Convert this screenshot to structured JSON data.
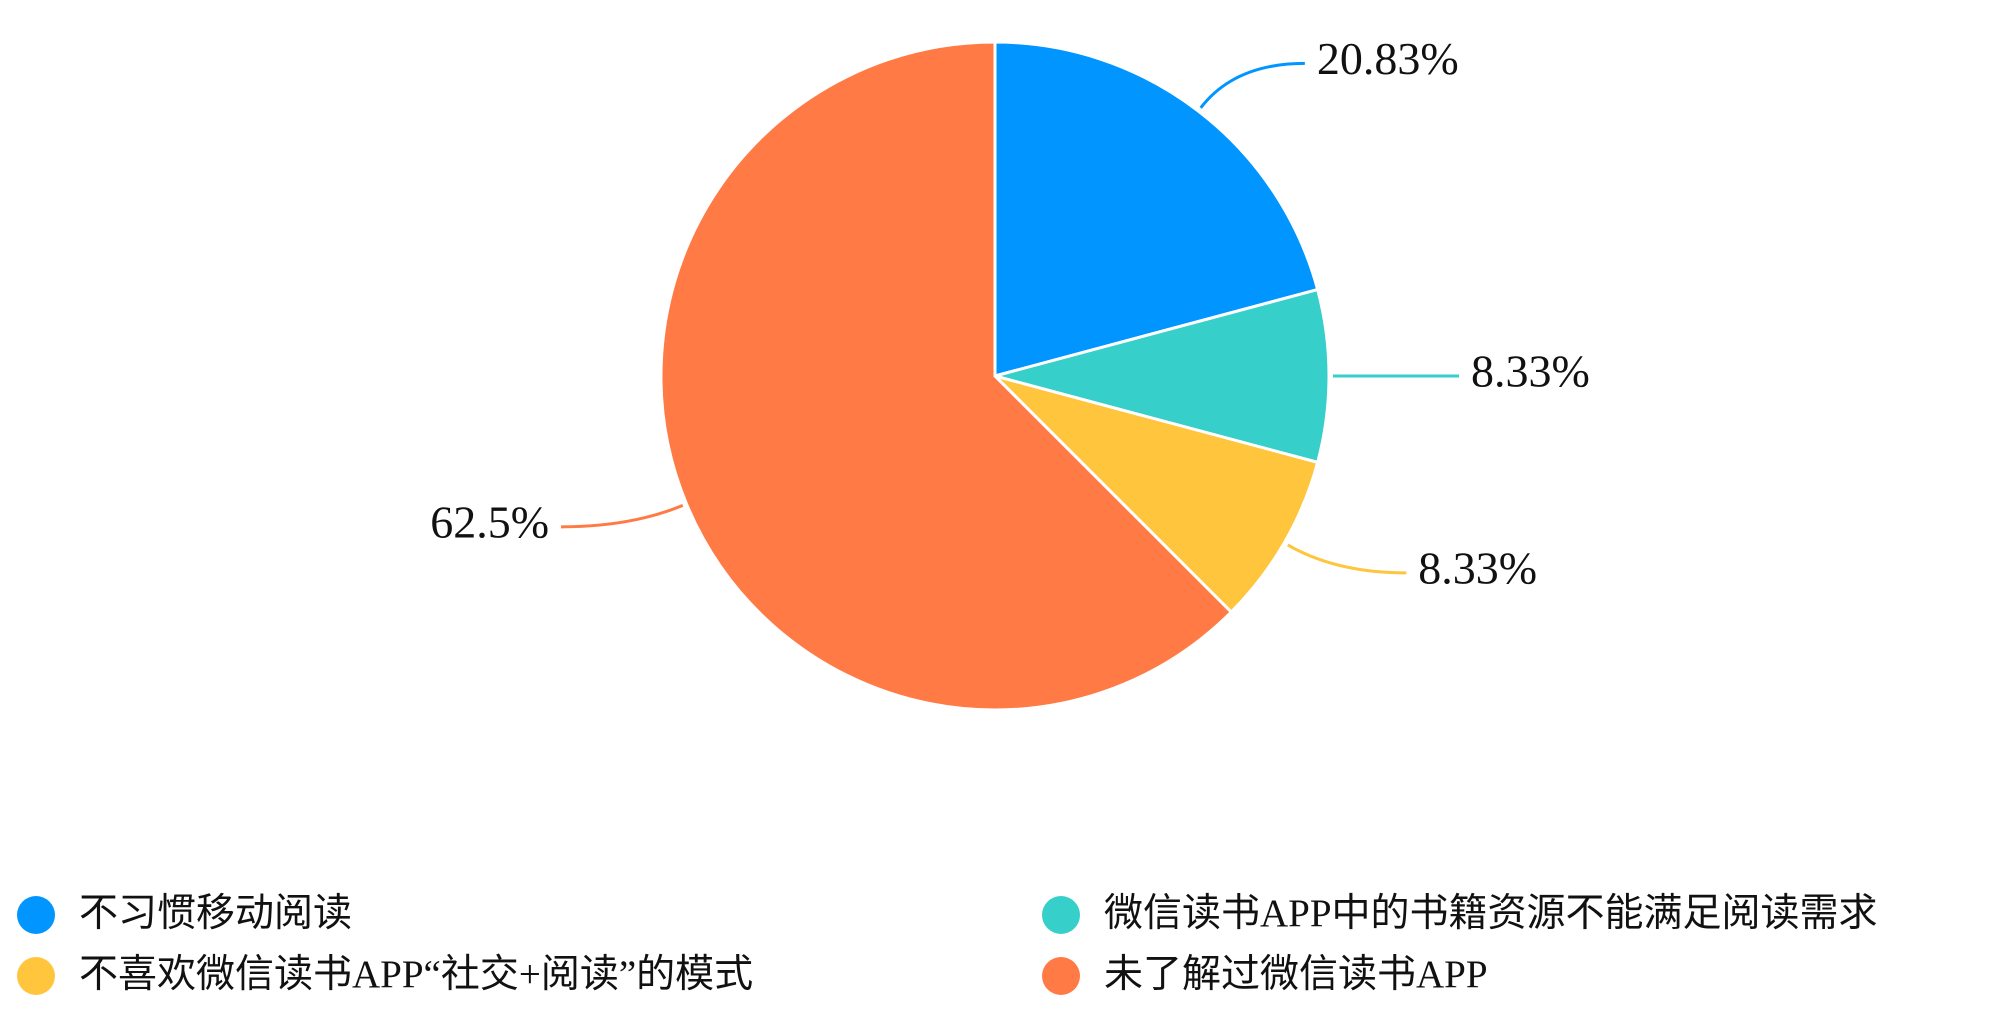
{
  "chart_data": {
    "type": "pie",
    "categories": [
      "不习惯移动阅读",
      "微信读书APP中的书籍资源不能满足阅读需求",
      "不喜欢微信读书APP“社交+阅读”的模式",
      "未了解过微信读书APP"
    ],
    "values": [
      20.83,
      8.33,
      8.33,
      62.5
    ],
    "value_labels": [
      "20.83%",
      "8.33%",
      "8.33%",
      "62.5%"
    ],
    "colors": [
      "#0095ff",
      "#36cfca",
      "#ffc53d",
      "#ff7a45"
    ]
  }
}
